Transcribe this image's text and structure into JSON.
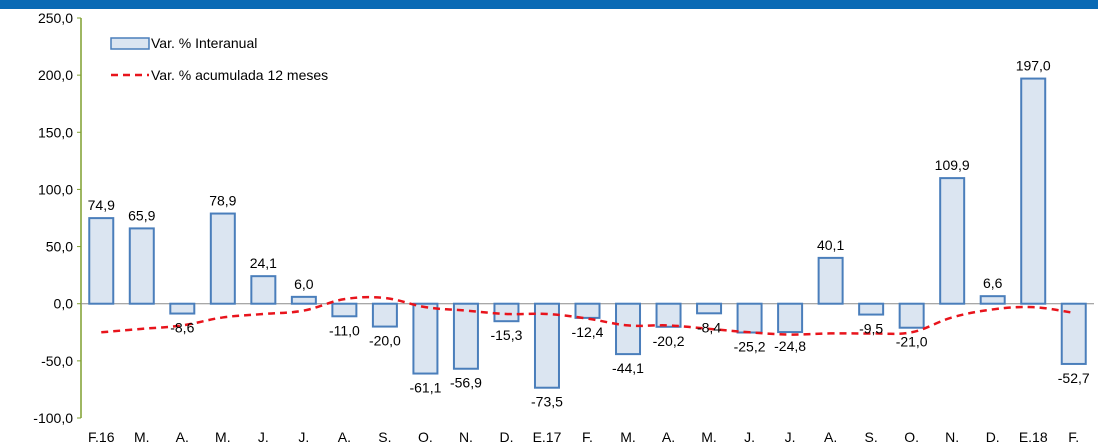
{
  "chart_data": {
    "type": "bar",
    "title": "",
    "xlabel": "",
    "ylabel": "",
    "ylim": [
      -100,
      250
    ],
    "yticks": [
      -100,
      -50,
      0,
      50,
      100,
      150,
      200,
      250
    ],
    "ytick_labels": [
      "-100,0",
      "-50,0",
      "0,0",
      "50,0",
      "100,0",
      "150,0",
      "200,0",
      "250,0"
    ],
    "grid": false,
    "legend_position": "top-left",
    "categories": [
      "F.16",
      "M.",
      "A.",
      "M.",
      "J.",
      "J.",
      "A.",
      "S.",
      "O.",
      "N.",
      "D.",
      "E.17",
      "F.",
      "M.",
      "A.",
      "M.",
      "J.",
      "J.",
      "A.",
      "S.",
      "O.",
      "N.",
      "D.",
      "E.18",
      "F."
    ],
    "series": [
      {
        "name": "Var. % Interanual",
        "kind": "bar",
        "color": "#4a7ebb",
        "fill": "#dbe5f1",
        "values": [
          74.9,
          65.9,
          -8.6,
          78.9,
          24.1,
          6.0,
          -11.0,
          -20.0,
          -61.1,
          -56.9,
          -15.3,
          -73.5,
          -12.4,
          -44.1,
          -20.2,
          -8.4,
          -25.2,
          -24.8,
          40.1,
          -9.5,
          -21.0,
          109.9,
          6.6,
          197.0,
          -52.7
        ],
        "labels": [
          "74,9",
          "65,9",
          "-8,6",
          "78,9",
          "24,1",
          "6,0",
          "-11,0",
          "-20,0",
          "-61,1",
          "-56,9",
          "-15,3",
          "-73,5",
          "-12,4",
          "-44,1",
          "-20,2",
          "-8,4",
          "-25,2",
          "-24,8",
          "40,1",
          "-9,5",
          "-21,0",
          "109,9",
          "6,6",
          "197,0",
          "-52,7"
        ]
      },
      {
        "name": "Var. % acumulada 12 meses",
        "kind": "line",
        "style": "dashed",
        "color": "#e8141c",
        "values": [
          -25,
          -22,
          -19,
          -12,
          -9,
          -6,
          4,
          5,
          -3,
          -6,
          -9,
          -9,
          -13,
          -19,
          -19,
          -22,
          -25,
          -27,
          -26,
          -26,
          -25,
          -12,
          -5,
          -3,
          -8
        ]
      }
    ]
  },
  "header_band_color": "#0a6ab5"
}
